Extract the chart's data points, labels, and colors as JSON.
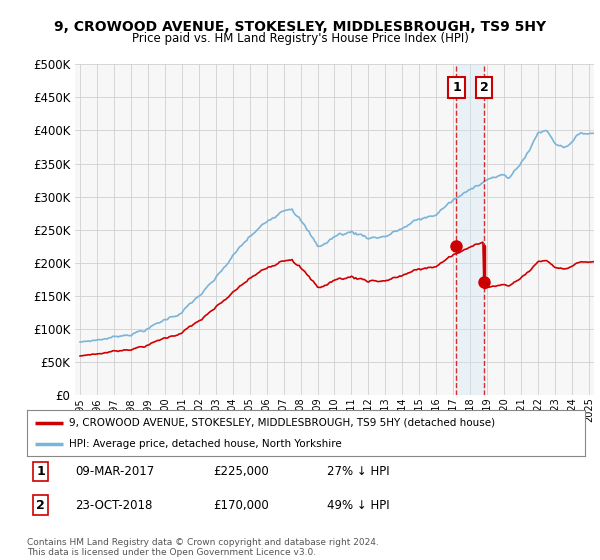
{
  "title": "9, CROWOOD AVENUE, STOKESLEY, MIDDLESBROUGH, TS9 5HY",
  "subtitle": "Price paid vs. HM Land Registry's House Price Index (HPI)",
  "legend_entry1": "9, CROWOOD AVENUE, STOKESLEY, MIDDLESBROUGH, TS9 5HY (detached house)",
  "legend_entry2": "HPI: Average price, detached house, North Yorkshire",
  "annotation1_date": "09-MAR-2017",
  "annotation1_price": "£225,000",
  "annotation1_hpi": "27% ↓ HPI",
  "annotation2_date": "23-OCT-2018",
  "annotation2_price": "£170,000",
  "annotation2_hpi": "49% ↓ HPI",
  "footer": "Contains HM Land Registry data © Crown copyright and database right 2024.\nThis data is licensed under the Open Government Licence v3.0.",
  "hpi_color": "#7ab4d8",
  "price_color": "#cc0000",
  "annotation_color": "#cc0000",
  "shade_color": "#d0e8f5",
  "ylim": [
    0,
    500000
  ],
  "yticks": [
    0,
    50000,
    100000,
    150000,
    200000,
    250000,
    300000,
    350000,
    400000,
    450000,
    500000
  ],
  "background_color": "#ffffff",
  "plot_bg_color": "#f7f7f7",
  "grid_color": "#d0d0d0",
  "t1_year": 2017.19,
  "t2_year": 2018.81,
  "price_t1": 225000,
  "price_t2": 170000,
  "hpi_at_t1": 306000,
  "hpi_at_t2": 333000
}
